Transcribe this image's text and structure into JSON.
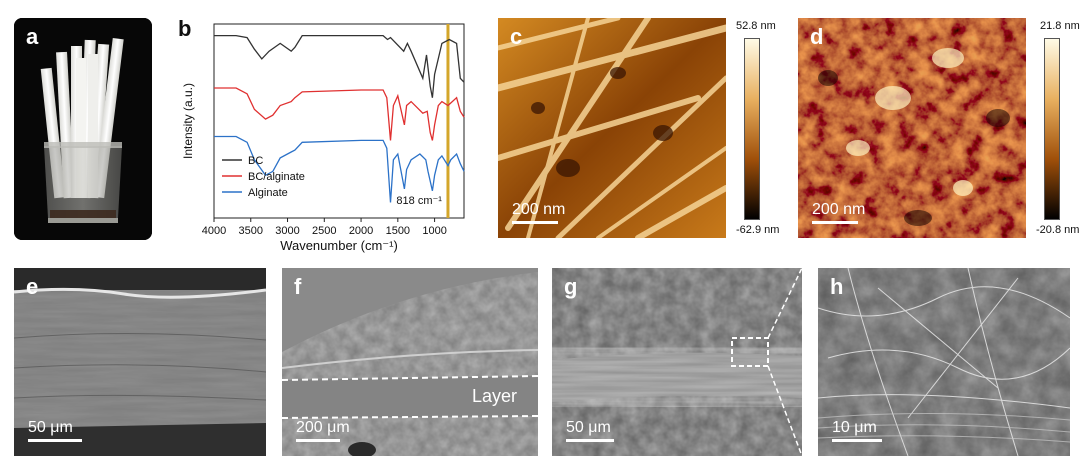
{
  "panels": {
    "a": {
      "label": "a"
    },
    "b": {
      "label": "b"
    },
    "c": {
      "label": "c",
      "scale_text": "200 nm",
      "cbar_max": "52.8 nm",
      "cbar_min": "-62.9 nm"
    },
    "d": {
      "label": "d",
      "scale_text": "200 nm",
      "cbar_max": "21.8 nm",
      "cbar_min": "-20.8 nm"
    },
    "e": {
      "label": "e",
      "scale_text": "50 μm"
    },
    "f": {
      "label": "f",
      "scale_text": "200 μm",
      "annotation": "Layer"
    },
    "g": {
      "label": "g",
      "scale_text": "50 μm"
    },
    "h": {
      "label": "h",
      "scale_text": "10 μm"
    }
  },
  "chart_data": {
    "type": "line",
    "xlabel": "Wavenumber (cm⁻¹)",
    "ylabel": "Intensity (a.u.)",
    "xlim": [
      4000,
      600
    ],
    "x_ticks": [
      4000,
      3500,
      3000,
      2500,
      2000,
      1500,
      1000
    ],
    "annotation": "818 cm⁻¹",
    "highlight_x": 818,
    "highlight_color": "#d4a62a",
    "legend_position": "bottom-left",
    "series": [
      {
        "name": "BC",
        "color": "#333333",
        "points": [
          [
            4000,
            0.94
          ],
          [
            3700,
            0.94
          ],
          [
            3550,
            0.93
          ],
          [
            3450,
            0.87
          ],
          [
            3350,
            0.82
          ],
          [
            3250,
            0.86
          ],
          [
            3100,
            0.9
          ],
          [
            2950,
            0.86
          ],
          [
            2900,
            0.88
          ],
          [
            2800,
            0.94
          ],
          [
            2000,
            0.94
          ],
          [
            1700,
            0.94
          ],
          [
            1640,
            0.92
          ],
          [
            1600,
            0.93
          ],
          [
            1420,
            0.86
          ],
          [
            1370,
            0.9
          ],
          [
            1320,
            0.86
          ],
          [
            1160,
            0.72
          ],
          [
            1110,
            0.84
          ],
          [
            1060,
            0.68
          ],
          [
            1030,
            0.62
          ],
          [
            1000,
            0.74
          ],
          [
            900,
            0.9
          ],
          [
            800,
            0.92
          ],
          [
            700,
            0.9
          ],
          [
            650,
            0.72
          ],
          [
            600,
            0.7
          ]
        ]
      },
      {
        "name": "BC/alginate",
        "color": "#e03030",
        "points": [
          [
            4000,
            0.67
          ],
          [
            3700,
            0.67
          ],
          [
            3550,
            0.64
          ],
          [
            3450,
            0.56
          ],
          [
            3300,
            0.51
          ],
          [
            3200,
            0.53
          ],
          [
            3100,
            0.58
          ],
          [
            2950,
            0.6
          ],
          [
            2900,
            0.62
          ],
          [
            2800,
            0.65
          ],
          [
            2000,
            0.66
          ],
          [
            1700,
            0.66
          ],
          [
            1650,
            0.62
          ],
          [
            1600,
            0.4
          ],
          [
            1560,
            0.58
          ],
          [
            1500,
            0.63
          ],
          [
            1410,
            0.48
          ],
          [
            1380,
            0.58
          ],
          [
            1320,
            0.6
          ],
          [
            1160,
            0.54
          ],
          [
            1100,
            0.55
          ],
          [
            1060,
            0.44
          ],
          [
            1030,
            0.4
          ],
          [
            1000,
            0.48
          ],
          [
            950,
            0.58
          ],
          [
            900,
            0.6
          ],
          [
            818,
            0.58
          ],
          [
            700,
            0.62
          ],
          [
            650,
            0.55
          ],
          [
            600,
            0.52
          ]
        ]
      },
      {
        "name": "Alginate",
        "color": "#2c72c8",
        "points": [
          [
            4000,
            0.42
          ],
          [
            3700,
            0.42
          ],
          [
            3550,
            0.39
          ],
          [
            3450,
            0.3
          ],
          [
            3300,
            0.22
          ],
          [
            3200,
            0.24
          ],
          [
            3100,
            0.31
          ],
          [
            2950,
            0.34
          ],
          [
            2900,
            0.35
          ],
          [
            2800,
            0.39
          ],
          [
            2000,
            0.4
          ],
          [
            1700,
            0.4
          ],
          [
            1650,
            0.36
          ],
          [
            1600,
            0.08
          ],
          [
            1560,
            0.3
          ],
          [
            1500,
            0.33
          ],
          [
            1410,
            0.15
          ],
          [
            1380,
            0.25
          ],
          [
            1320,
            0.3
          ],
          [
            1200,
            0.33
          ],
          [
            1120,
            0.3
          ],
          [
            1090,
            0.24
          ],
          [
            1030,
            0.14
          ],
          [
            1000,
            0.22
          ],
          [
            950,
            0.3
          ],
          [
            900,
            0.32
          ],
          [
            818,
            0.27
          ],
          [
            780,
            0.3
          ],
          [
            700,
            0.33
          ],
          [
            650,
            0.28
          ],
          [
            600,
            0.24
          ]
        ]
      }
    ]
  }
}
